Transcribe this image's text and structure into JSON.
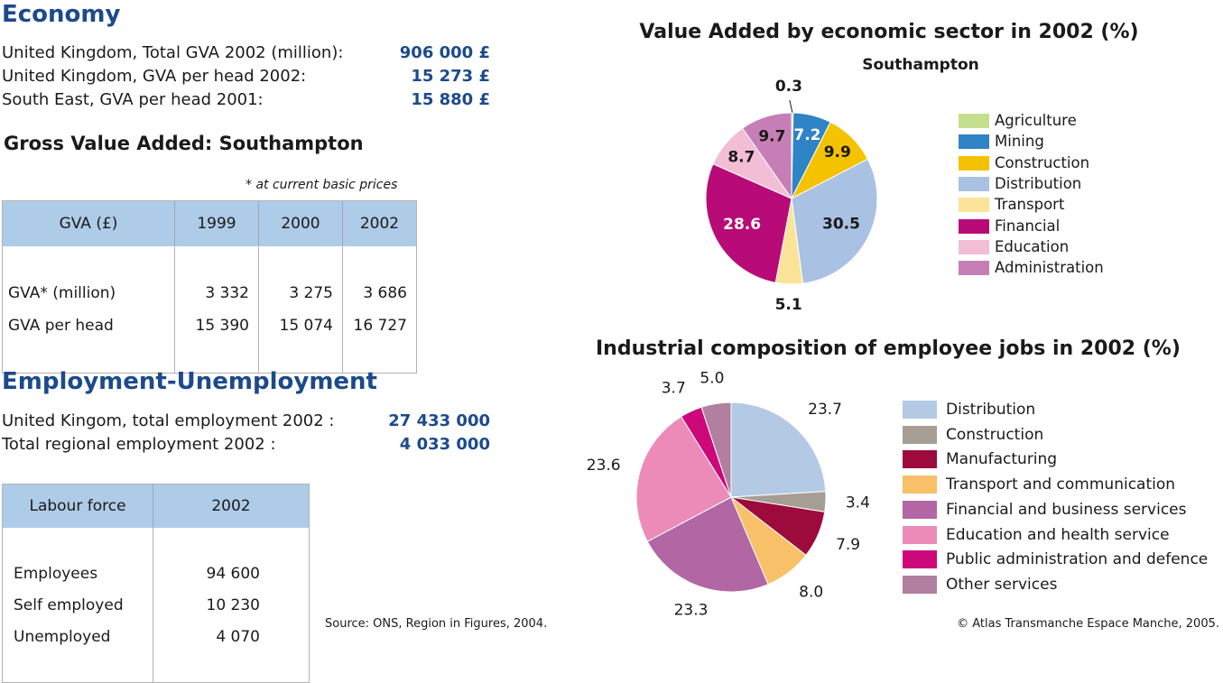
{
  "economy": {
    "heading": "Economy",
    "rows": [
      {
        "label": "United Kingdom, Total GVA 2002 (million):",
        "value": "906 000 £"
      },
      {
        "label": "United Kingdom, GVA per head 2002:",
        "value": "15 273 £"
      },
      {
        "label": "South East, GVA per head 2001:",
        "value": "15 880 £"
      }
    ]
  },
  "gva": {
    "heading": "Gross Value Added: Southampton",
    "note": "* at current basic prices",
    "headers": [
      "GVA (£)",
      "1999",
      "2000",
      "2002"
    ],
    "rows": [
      [
        "GVA* (million)",
        "3 332",
        "3 275",
        "3 686"
      ],
      [
        "GVA per head",
        "15 390",
        "15 074",
        "16 727"
      ]
    ]
  },
  "employment": {
    "heading": "Employment-Unemployment",
    "rows": [
      {
        "label": "United Kingom, total employment 2002 :",
        "value": "27 433 000"
      },
      {
        "label": "Total regional employment 2002 :",
        "value": "4 033 000"
      }
    ]
  },
  "labour": {
    "headers": [
      "Labour force",
      "2002"
    ],
    "rows": [
      [
        "Employees",
        "94 600"
      ],
      [
        "Self employed",
        "10 230"
      ],
      [
        "Unemployed",
        "4 070"
      ]
    ]
  },
  "chart_data": [
    {
      "type": "pie",
      "title": "Value Added by economic sector in 2002 (%)",
      "subtitle": "Southampton",
      "legend_position": "right",
      "slices": [
        {
          "label": "Agriculture",
          "value": 0.3,
          "color": "#c5df8e",
          "text_color": "#1a1a1a",
          "label_placement": "outside-leader"
        },
        {
          "label": "Mining",
          "value": 7.2,
          "color": "#2f84c6",
          "text_color": "#ffffff",
          "label_placement": "inside"
        },
        {
          "label": "Construction",
          "value": 9.9,
          "color": "#f5c200",
          "text_color": "#1a1a1a",
          "label_placement": "inside"
        },
        {
          "label": "Distribution",
          "value": 30.5,
          "color": "#a9c1e2",
          "text_color": "#1a1a1a",
          "label_placement": "inside"
        },
        {
          "label": "Transport",
          "value": 5.1,
          "color": "#fbe49a",
          "text_color": "#1a1a1a",
          "label_placement": "outside"
        },
        {
          "label": "Financial",
          "value": 28.6,
          "color": "#b80b78",
          "text_color": "#ffffff",
          "label_placement": "inside"
        },
        {
          "label": "Education",
          "value": 8.7,
          "color": "#f3bdd6",
          "text_color": "#1a1a1a",
          "label_placement": "inside"
        },
        {
          "label": "Administration",
          "value": 9.7,
          "color": "#c67fb6",
          "text_color": "#1a1a1a",
          "label_placement": "inside"
        }
      ]
    },
    {
      "type": "pie",
      "title": "Industrial composition of employee jobs in 2002 (%)",
      "legend_position": "right",
      "slices": [
        {
          "label": "Distribution",
          "value": 23.7,
          "color": "#b3c9e4"
        },
        {
          "label": "Construction",
          "value": 3.4,
          "color": "#a69e94"
        },
        {
          "label": "Manufacturing",
          "value": 7.9,
          "color": "#9c0b3c"
        },
        {
          "label": "Transport and communication",
          "value": 8.0,
          "color": "#f8c069"
        },
        {
          "label": "Financial and business services",
          "value": 23.3,
          "color": "#b266a3"
        },
        {
          "label": "Education and health service",
          "value": 23.6,
          "color": "#ec8bb8"
        },
        {
          "label": "Public administration and defence",
          "value": 3.7,
          "color": "#cd087a"
        },
        {
          "label": "Other services",
          "value": 5.0,
          "color": "#b17f9f"
        }
      ]
    }
  ],
  "footer": {
    "source": "Source: ONS, Region in Figures, 2004.",
    "copyright": "© Atlas Transmanche Espace Manche, 2005."
  }
}
